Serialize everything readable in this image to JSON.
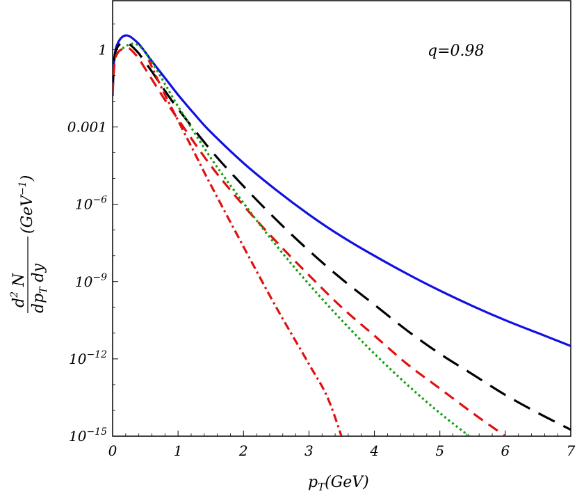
{
  "chart_data": {
    "type": "line",
    "annotation": "q=0.98",
    "xlabel": {
      "base": "p",
      "sub": "T",
      "rest": "(GeV)"
    },
    "ylabel": {
      "num_d": "d",
      "num_sup": "2",
      "num_rest": " N",
      "den_dp": "dp",
      "den_sub": "T",
      "den_rest": " dy",
      "unit_open": "(GeV",
      "unit_sup": "−1",
      "unit_close": ")"
    },
    "xlim": [
      0,
      7
    ],
    "ylim_log10": [
      -15,
      1.9
    ],
    "y_scale": "log",
    "grid": false,
    "legend": "none",
    "x_ticks": [
      "0",
      "1",
      "2",
      "3",
      "4",
      "5",
      "6",
      "7"
    ],
    "y_ticks": [
      {
        "value": 1,
        "label": "1"
      },
      {
        "value": 0.001,
        "label": "0.001"
      },
      {
        "value": 1e-06,
        "base": "10",
        "exp": "−6"
      },
      {
        "value": 1e-09,
        "base": "10",
        "exp": "−9"
      },
      {
        "value": 1e-12,
        "base": "10",
        "exp": "−12"
      },
      {
        "value": 1e-15,
        "base": "10",
        "exp": "−15"
      }
    ],
    "series": [
      {
        "color": "#1010e0",
        "dash": "solid",
        "points": [
          [
            0,
            -1.8
          ],
          [
            0.02,
            -0.5
          ],
          [
            0.05,
            0.05
          ],
          [
            0.1,
            0.35
          ],
          [
            0.15,
            0.5
          ],
          [
            0.2,
            0.55
          ],
          [
            0.25,
            0.53
          ],
          [
            0.3,
            0.45
          ],
          [
            0.4,
            0.22
          ],
          [
            0.5,
            -0.1
          ],
          [
            0.6,
            -0.45
          ],
          [
            0.8,
            -1.1
          ],
          [
            1,
            -1.75
          ],
          [
            1.25,
            -2.5
          ],
          [
            1.5,
            -3.2
          ],
          [
            2,
            -4.4
          ],
          [
            2.5,
            -5.45
          ],
          [
            3,
            -6.4
          ],
          [
            3.5,
            -7.25
          ],
          [
            4,
            -8.0
          ],
          [
            4.5,
            -8.7
          ],
          [
            5,
            -9.35
          ],
          [
            5.5,
            -9.95
          ],
          [
            6,
            -10.5
          ],
          [
            6.5,
            -11.0
          ],
          [
            7,
            -11.5
          ]
        ]
      },
      {
        "color": "#000000",
        "dash": "long-dash",
        "points": [
          [
            0,
            -1.5
          ],
          [
            0.03,
            -0.3
          ],
          [
            0.08,
            0.12
          ],
          [
            0.15,
            0.25
          ],
          [
            0.2,
            0.27
          ],
          [
            0.25,
            0.22
          ],
          [
            0.3,
            0.12
          ],
          [
            0.4,
            -0.15
          ],
          [
            0.5,
            -0.5
          ],
          [
            0.6,
            -0.85
          ],
          [
            0.8,
            -1.6
          ],
          [
            1,
            -2.3
          ],
          [
            1.5,
            -3.9
          ],
          [
            2,
            -5.3
          ],
          [
            2.5,
            -6.6
          ],
          [
            3,
            -7.8
          ],
          [
            3.5,
            -8.9
          ],
          [
            4,
            -9.9
          ],
          [
            4.5,
            -10.9
          ],
          [
            5,
            -11.8
          ],
          [
            5.5,
            -12.6
          ],
          [
            6,
            -13.4
          ],
          [
            6.5,
            -14.1
          ],
          [
            7,
            -14.75
          ]
        ]
      },
      {
        "color": "#e01010",
        "dash": "dashed",
        "points": [
          [
            0,
            -1.7
          ],
          [
            0.03,
            -0.5
          ],
          [
            0.08,
            -0.12
          ],
          [
            0.15,
            0.03
          ],
          [
            0.2,
            0.07
          ],
          [
            0.25,
            0.05
          ],
          [
            0.3,
            -0.05
          ],
          [
            0.4,
            -0.35
          ],
          [
            0.5,
            -0.75
          ],
          [
            0.6,
            -1.15
          ],
          [
            0.8,
            -1.95
          ],
          [
            1,
            -2.7
          ],
          [
            1.5,
            -4.5
          ],
          [
            2,
            -6.05
          ],
          [
            2.5,
            -7.45
          ],
          [
            3,
            -8.75
          ],
          [
            3.5,
            -10.0
          ],
          [
            4,
            -11.1
          ],
          [
            4.5,
            -12.2
          ],
          [
            5,
            -13.15
          ],
          [
            5.5,
            -14.1
          ],
          [
            6,
            -15.0
          ],
          [
            6.45,
            -15.8
          ]
        ]
      },
      {
        "color": "#10a010",
        "dash": "dotted",
        "points": [
          [
            0.15,
            0.05
          ],
          [
            0.25,
            0.2
          ],
          [
            0.35,
            0.22
          ],
          [
            0.45,
            0.05
          ],
          [
            0.55,
            -0.3
          ],
          [
            0.7,
            -0.9
          ],
          [
            0.85,
            -1.55
          ],
          [
            1,
            -2.2
          ],
          [
            1.5,
            -4.2
          ],
          [
            2,
            -5.95
          ],
          [
            2.5,
            -7.6
          ],
          [
            3,
            -9.1
          ],
          [
            3.5,
            -10.5
          ],
          [
            4,
            -11.8
          ],
          [
            4.5,
            -13.0
          ],
          [
            5,
            -14.1
          ],
          [
            5.5,
            -15.1
          ],
          [
            5.8,
            -15.7
          ]
        ]
      },
      {
        "color": "#e01010",
        "dash": "dash-dot",
        "points": [
          [
            0.55,
            -0.4
          ],
          [
            0.65,
            -0.95
          ],
          [
            0.8,
            -1.75
          ],
          [
            1,
            -2.75
          ],
          [
            1.25,
            -4.0
          ],
          [
            1.5,
            -5.25
          ],
          [
            2,
            -7.65
          ],
          [
            2.5,
            -10.0
          ],
          [
            3,
            -12.2
          ],
          [
            3.3,
            -13.6
          ],
          [
            3.6,
            -15.8
          ]
        ]
      }
    ]
  }
}
